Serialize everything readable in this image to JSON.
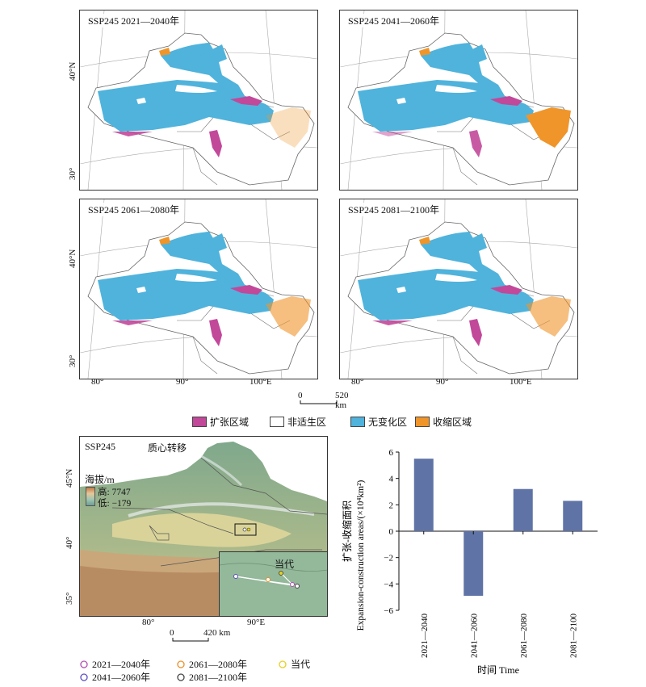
{
  "map_panels": [
    {
      "title": "SSP245 2021—2040年"
    },
    {
      "title": "SSP245 2041—2060年"
    },
    {
      "title": "SSP245 2061—2080年"
    },
    {
      "title": "SSP245 2081—2100年"
    }
  ],
  "lat_labels": {
    "lat40": "40°N",
    "lat30": "30°"
  },
  "lon_labels": [
    "80°",
    "90°",
    "100°E"
  ],
  "scale_top": {
    "zero": "0",
    "dist": "520 km"
  },
  "legend": [
    {
      "label": "扩张区域",
      "color": "#c2489a"
    },
    {
      "label": "非适生区",
      "color": "#ffffff"
    },
    {
      "label": "无变化区",
      "color": "#4fb3dc"
    },
    {
      "label": "收缩区域",
      "color": "#f0952a"
    }
  ],
  "centroid_map": {
    "title": "SSP245",
    "subtitle": "质心转移",
    "elevation_title": "海拔/m",
    "elev_high": "高: 7747",
    "elev_low": "低: −179",
    "lat_labels": [
      "45°N",
      "40°",
      "35°"
    ],
    "lon_labels": [
      "80°",
      "90°E"
    ],
    "inset_label": "当代",
    "scale": {
      "zero": "0",
      "dist": "420 km"
    }
  },
  "centroid_legend": [
    {
      "label": "2021—2040年",
      "color": "#b04fb0"
    },
    {
      "label": "2061—2080年",
      "color": "#e8902a"
    },
    {
      "label": "当代",
      "color": "#e8d020"
    },
    {
      "label": "2041—2060年",
      "color": "#5a4fc0"
    },
    {
      "label": "2081—2100年",
      "color": "#444444"
    }
  ],
  "chart_data": {
    "type": "bar",
    "categories": [
      "2021—2040",
      "2041—2060",
      "2061—2080",
      "2081—2100"
    ],
    "values": [
      5.5,
      -4.9,
      3.2,
      2.3
    ],
    "ylim": [
      -6,
      6
    ],
    "yticks": [
      -6,
      -4,
      -2,
      0,
      2,
      4,
      6
    ],
    "ylabel_cn": "扩张-收缩面积",
    "ylabel_en": "Expansion-construction areas/(×10⁴km²)",
    "xlabel": "时间 Time",
    "bar_color": "#5f73a6"
  }
}
